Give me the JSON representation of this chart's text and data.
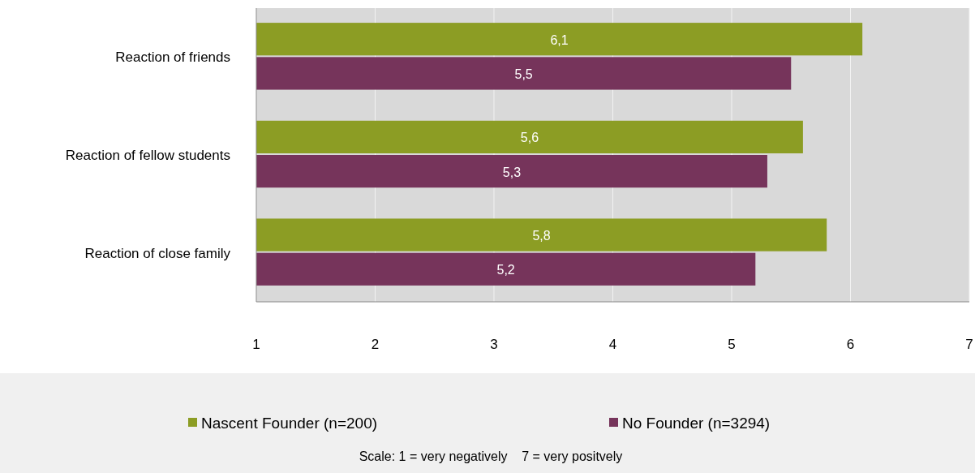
{
  "chart_data": {
    "type": "bar",
    "orientation": "horizontal",
    "categories": [
      "Reaction of friends",
      "Reaction of fellow students",
      "Reaction of close family"
    ],
    "series": [
      {
        "name": "Nascent Founder (n=200)",
        "color": "#8c9d24",
        "values": [
          6.1,
          5.6,
          5.8
        ],
        "value_labels": [
          "6,1",
          "5,6",
          "5,8"
        ]
      },
      {
        "name": "No Founder (n=3294)",
        "color": "#76345b",
        "values": [
          5.5,
          5.3,
          5.2
        ],
        "value_labels": [
          "5,5",
          "5,3",
          "5,2"
        ]
      }
    ],
    "xlim": [
      1,
      7
    ],
    "xticks": [
      1,
      2,
      3,
      4,
      5,
      6,
      7
    ],
    "grid": "x",
    "legend": "bottom",
    "annotations": [
      "Scale: 1 = very negatively    7 = very positvely"
    ]
  }
}
